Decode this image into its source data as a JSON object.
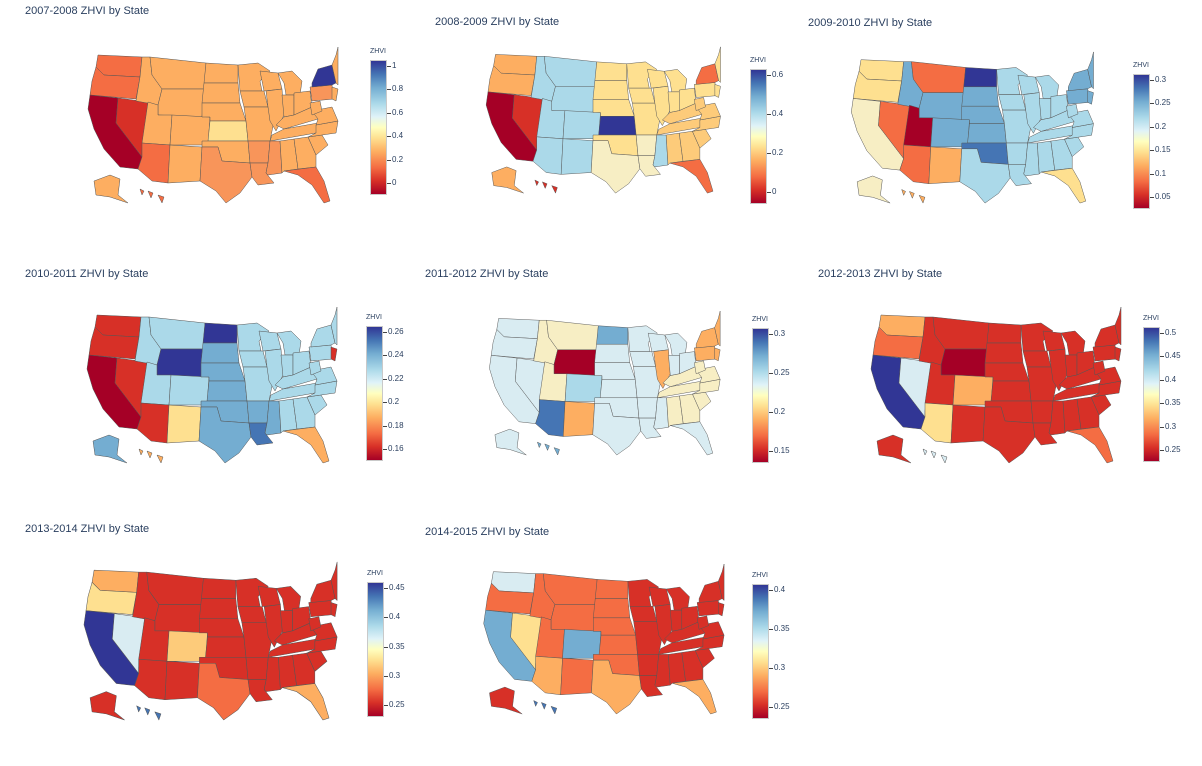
{
  "panels": [
    {
      "title": "2007-2008 ZHVI by State",
      "colorbar": {
        "title": "ZHVI",
        "ticks": [
          "1",
          "0.8",
          "0.6",
          "0.4",
          "0.2",
          "0"
        ]
      },
      "region_colors": {
        "west": "#f46d43",
        "mountain": "#fdae61",
        "plains": "#fdae61",
        "midwest": "#fdae61",
        "south": "#f8955a",
        "southeast": "#fdae61",
        "northeast": "#fdae61",
        "alaska": "#fdae61",
        "hawaii": "#f46d43"
      },
      "highlights": [
        {
          "name": "California",
          "color": "#a50026"
        },
        {
          "name": "Nevada",
          "color": "#d73027"
        },
        {
          "name": "Arizona",
          "color": "#f46d43"
        },
        {
          "name": "Florida",
          "color": "#f46d43"
        },
        {
          "name": "Kansas",
          "color": "#fee090"
        },
        {
          "name": "New York",
          "color": "#313695"
        },
        {
          "name": "Pennsylvania",
          "color": "#f8955a"
        }
      ]
    },
    {
      "title": "2008-2009 ZHVI by State",
      "colorbar": {
        "title": "ZHVI",
        "ticks": [
          "0.6",
          "0.4",
          "0.2",
          "0"
        ]
      },
      "region_colors": {
        "west": "#fdae61",
        "mountain": "#abd9e9",
        "plains": "#fee090",
        "midwest": "#fee090",
        "south": "#f7eec4",
        "southeast": "#fdcb7a",
        "northeast": "#fee090",
        "alaska": "#fdae61",
        "hawaii": "#d73027"
      },
      "highlights": [
        {
          "name": "California",
          "color": "#a50026"
        },
        {
          "name": "Nevada",
          "color": "#d73027"
        },
        {
          "name": "Kansas",
          "color": "#313695"
        },
        {
          "name": "Florida",
          "color": "#f46d43"
        },
        {
          "name": "Mississippi",
          "color": "#abd9e9"
        },
        {
          "name": "New York",
          "color": "#f46d43"
        }
      ]
    },
    {
      "title": "2009-2010 ZHVI by State",
      "colorbar": {
        "title": "ZHVI",
        "ticks": [
          "0.3",
          "0.25",
          "0.2",
          "0.15",
          "0.1",
          "0.05"
        ]
      },
      "region_colors": {
        "west": "#fee090",
        "mountain": "#74add1",
        "plains": "#74add1",
        "midwest": "#abd9e9",
        "south": "#abd9e9",
        "southeast": "#abd9e9",
        "northeast": "#74add1",
        "alaska": "#f7eec4",
        "hawaii": "#fdae61"
      },
      "highlights": [
        {
          "name": "California",
          "color": "#f7eec4"
        },
        {
          "name": "Nevada",
          "color": "#f46d43"
        },
        {
          "name": "Utah",
          "color": "#a50026"
        },
        {
          "name": "Montana",
          "color": "#f46d43"
        },
        {
          "name": "North Dakota",
          "color": "#313695"
        },
        {
          "name": "Oklahoma",
          "color": "#4575b4"
        },
        {
          "name": "Florida",
          "color": "#fee090"
        },
        {
          "name": "Arizona",
          "color": "#f46d43"
        },
        {
          "name": "New Mexico",
          "color": "#fdae61"
        }
      ]
    },
    {
      "title": "2010-2011 ZHVI by State",
      "colorbar": {
        "title": "ZHVI",
        "ticks": [
          "0.26",
          "0.24",
          "0.22",
          "0.2",
          "0.18",
          "0.16"
        ]
      },
      "region_colors": {
        "west": "#d73027",
        "mountain": "#abd9e9",
        "plains": "#74add1",
        "midwest": "#abd9e9",
        "south": "#74add1",
        "southeast": "#abd9e9",
        "northeast": "#abd9e9",
        "alaska": "#74add1",
        "hawaii": "#fdae61"
      },
      "highlights": [
        {
          "name": "California",
          "color": "#a50026"
        },
        {
          "name": "Wyoming",
          "color": "#313695"
        },
        {
          "name": "North Dakota",
          "color": "#313695"
        },
        {
          "name": "Louisiana",
          "color": "#4575b4"
        },
        {
          "name": "Florida",
          "color": "#fdae61"
        },
        {
          "name": "New Mexico",
          "color": "#fee090"
        },
        {
          "name": "Arizona",
          "color": "#d73027"
        },
        {
          "name": "New Jersey",
          "color": "#d73027"
        }
      ]
    },
    {
      "title": "2011-2012 ZHVI by State",
      "colorbar": {
        "title": "ZHVI",
        "ticks": [
          "0.3",
          "0.25",
          "0.2",
          "0.15"
        ]
      },
      "region_colors": {
        "west": "#d9ecf2",
        "mountain": "#f7eec4",
        "plains": "#d9ecf2",
        "midwest": "#d9ecf2",
        "south": "#d9ecf2",
        "southeast": "#f7eec4",
        "northeast": "#fdae61",
        "alaska": "#d9ecf2",
        "hawaii": "#74add1"
      },
      "highlights": [
        {
          "name": "Wyoming",
          "color": "#a50026"
        },
        {
          "name": "Arizona",
          "color": "#4575b4"
        },
        {
          "name": "North Dakota",
          "color": "#74add1"
        },
        {
          "name": "Colorado",
          "color": "#abd9e9"
        },
        {
          "name": "New Mexico",
          "color": "#fdae61"
        },
        {
          "name": "Illinois",
          "color": "#fdae61"
        },
        {
          "name": "Florida",
          "color": "#d9ecf2"
        }
      ]
    },
    {
      "title": "2012-2013 ZHVI by State",
      "colorbar": {
        "title": "ZHVI",
        "ticks": [
          "0.5",
          "0.45",
          "0.4",
          "0.35",
          "0.3",
          "0.25"
        ]
      },
      "region_colors": {
        "west": "#fdae61",
        "mountain": "#d73027",
        "plains": "#d73027",
        "midwest": "#d73027",
        "south": "#d73027",
        "southeast": "#d73027",
        "northeast": "#d73027",
        "alaska": "#d73027",
        "hawaii": "#d9ecf2"
      },
      "highlights": [
        {
          "name": "California",
          "color": "#313695"
        },
        {
          "name": "Nevada",
          "color": "#d9ecf2"
        },
        {
          "name": "Wyoming",
          "color": "#a50026"
        },
        {
          "name": "Arizona",
          "color": "#fee090"
        },
        {
          "name": "Colorado",
          "color": "#fdae61"
        },
        {
          "name": "Florida",
          "color": "#f46d43"
        },
        {
          "name": "Oregon",
          "color": "#f46d43"
        }
      ]
    },
    {
      "title": "2013-2014 ZHVI by State",
      "colorbar": {
        "title": "ZHVI",
        "ticks": [
          "0.45",
          "0.4",
          "0.35",
          "0.3",
          "0.25"
        ]
      },
      "region_colors": {
        "west": "#fdae61",
        "mountain": "#d73027",
        "plains": "#d73027",
        "midwest": "#d73027",
        "south": "#d73027",
        "southeast": "#d73027",
        "northeast": "#d73027",
        "alaska": "#d73027",
        "hawaii": "#4575b4"
      },
      "highlights": [
        {
          "name": "California",
          "color": "#313695"
        },
        {
          "name": "Nevada",
          "color": "#d9ecf2"
        },
        {
          "name": "Colorado",
          "color": "#fdcb7a"
        },
        {
          "name": "Oregon",
          "color": "#fee090"
        },
        {
          "name": "Florida",
          "color": "#fdae61"
        },
        {
          "name": "Texas",
          "color": "#f46d43"
        }
      ]
    },
    {
      "title": "2014-2015 ZHVI by State",
      "colorbar": {
        "title": "ZHVI",
        "ticks": [
          "0.4",
          "0.35",
          "0.3",
          "0.25"
        ]
      },
      "region_colors": {
        "west": "#f46d43",
        "mountain": "#f46d43",
        "plains": "#f46d43",
        "midwest": "#d73027",
        "south": "#d73027",
        "southeast": "#d73027",
        "northeast": "#d73027",
        "alaska": "#d73027",
        "hawaii": "#4575b4"
      },
      "highlights": [
        {
          "name": "California",
          "color": "#74add1"
        },
        {
          "name": "Washington",
          "color": "#d9ecf2"
        },
        {
          "name": "Colorado",
          "color": "#74add1"
        },
        {
          "name": "Nevada",
          "color": "#fee090"
        },
        {
          "name": "Florida",
          "color": "#fdae61"
        },
        {
          "name": "Texas",
          "color": "#fdae61"
        },
        {
          "name": "Arizona",
          "color": "#fdae61"
        }
      ]
    }
  ]
}
